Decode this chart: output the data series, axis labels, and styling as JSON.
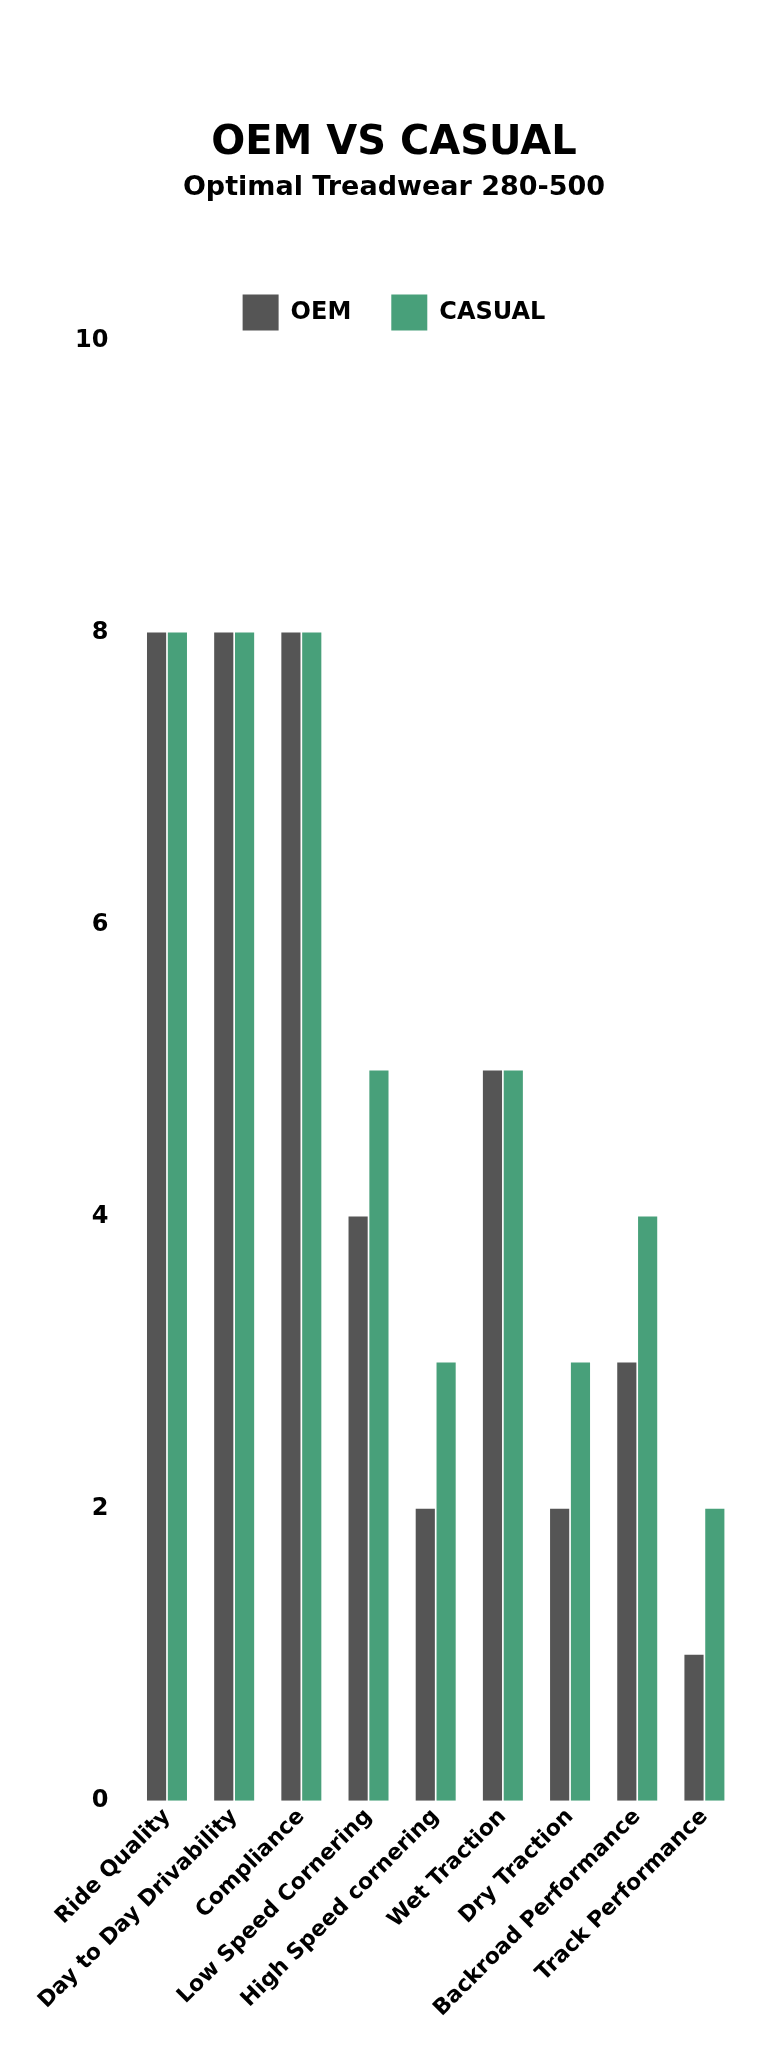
{
  "chart_data": {
    "type": "bar",
    "title": "OEM VS CASUAL",
    "subtitle": "Optimal Treadwear 280-500",
    "categories": [
      "Ride Quality",
      "Day to Day Drivability",
      "Compliance",
      "Low Speed Cornering",
      "High Speed cornering",
      "Wet Traction",
      "Dry Traction",
      "Backroad Performance",
      "Track Performance"
    ],
    "series": [
      {
        "name": "OEM",
        "color": "#555555",
        "values": [
          8,
          8,
          8,
          4,
          2,
          5,
          2,
          3,
          1
        ]
      },
      {
        "name": "CASUAL",
        "color": "#48a07a",
        "values": [
          8,
          8,
          8,
          5,
          3,
          5,
          3,
          4,
          2
        ]
      }
    ],
    "ylim": [
      0,
      10
    ],
    "yticks": [
      0,
      2,
      4,
      6,
      8,
      10
    ],
    "grid": false,
    "legend": "top"
  }
}
